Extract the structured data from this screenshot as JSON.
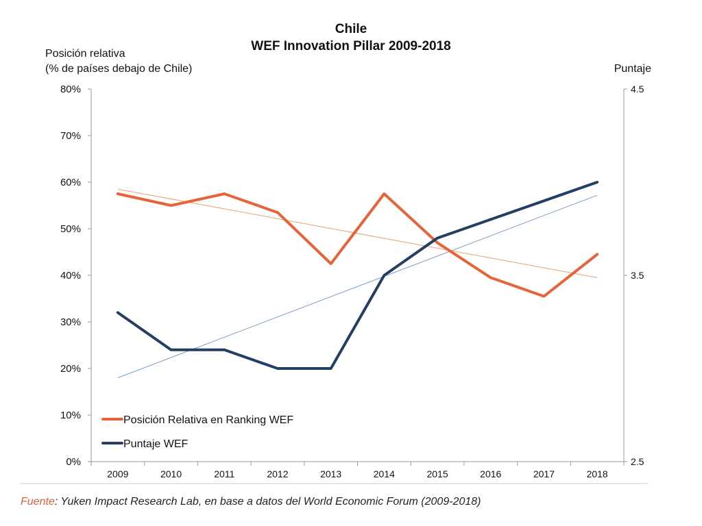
{
  "source": {
    "label": "Fuente",
    "text": ": Yuken Impact Research Lab, en base a datos del World Economic Forum (2009-2018)"
  },
  "chart_data": {
    "type": "line",
    "title": "Chile",
    "subtitle": "WEF Innovation Pillar 2009-2018",
    "ylabel_left_line1": "Posición relativa",
    "ylabel_left_line2": "(% de países debajo de Chile)",
    "ylabel_right": "Puntaje",
    "categories": [
      "2009",
      "2010",
      "2011",
      "2012",
      "2013",
      "2014",
      "2015",
      "2016",
      "2017",
      "2018"
    ],
    "y_left": {
      "lim": [
        0,
        80
      ],
      "ticks": [
        "0%",
        "10%",
        "20%",
        "30%",
        "40%",
        "50%",
        "60%",
        "70%",
        "80%"
      ]
    },
    "y_right": {
      "lim": [
        2.5,
        4.5
      ],
      "ticks": [
        "2.5",
        "3.5",
        "4.5"
      ]
    },
    "series": [
      {
        "name": "Posición Relativa en Ranking WEF",
        "axis": "left",
        "color": "#e8633a",
        "values": [
          57.5,
          55,
          57.5,
          53.5,
          42.5,
          57.5,
          47,
          39.5,
          35.5,
          44.5
        ]
      },
      {
        "name": "Puntaje WEF",
        "axis": "right",
        "color": "#253f63",
        "values": [
          3.3,
          3.1,
          3.1,
          3.0,
          3.0,
          3.5,
          3.7,
          3.8,
          3.9,
          4.0
        ]
      }
    ],
    "trendlines": [
      {
        "series": "Posición Relativa en Ranking WEF",
        "axis": "left",
        "color": "#e8a06a",
        "from": 58.5,
        "to": 39.5
      },
      {
        "series": "Puntaje WEF",
        "axis": "right",
        "color": "#7f9cc8",
        "from": 2.95,
        "to": 3.93
      }
    ],
    "legend": "bottom-left",
    "grid": false
  }
}
